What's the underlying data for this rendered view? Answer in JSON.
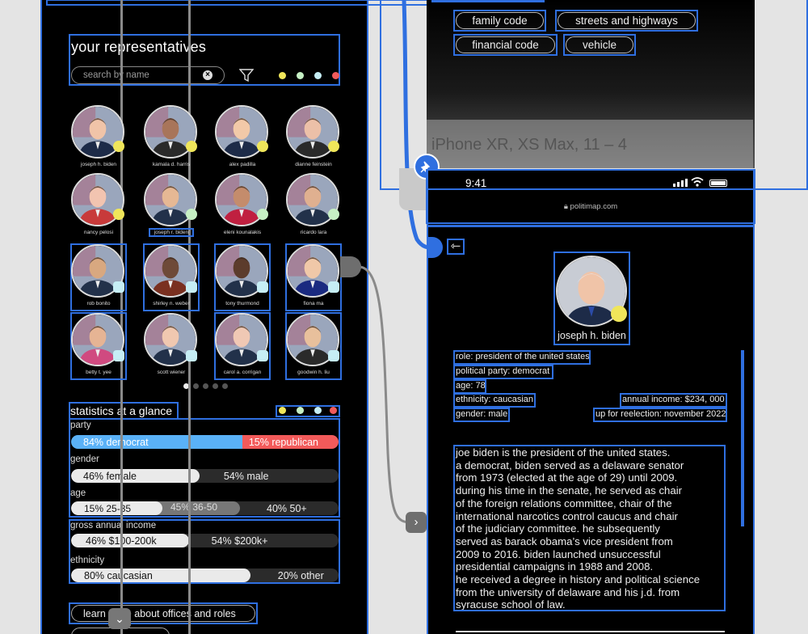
{
  "left_panel": {
    "title": "your representatives",
    "search_placeholder": "search by name",
    "filter_dot_colors": [
      "#f0e65a",
      "#c6f0c4",
      "#c6eef5",
      "#f25a5a"
    ],
    "reps": [
      {
        "name": "joseph h. biden",
        "badge": "#f0e65a"
      },
      {
        "name": "kamala d. harris",
        "badge": "#f0e65a"
      },
      {
        "name": "alex padilla",
        "badge": "#f0e65a"
      },
      {
        "name": "dianne feinstein",
        "badge": "#f0e65a"
      },
      {
        "name": "nancy pelosi",
        "badge": "#f0e65a"
      },
      {
        "name": "joseph r. biden",
        "badge": "#c6f0c4"
      },
      {
        "name": "eleni kounalakis",
        "badge": "#c6f0c4"
      },
      {
        "name": "ricardo lara",
        "badge": "#c6f0c4"
      },
      {
        "name": "rob bonito",
        "badge": "#c6eef5"
      },
      {
        "name": "shirley n. weber",
        "badge": "#c6eef5"
      },
      {
        "name": "tony thurmond",
        "badge": "#c6eef5"
      },
      {
        "name": "fiona ma",
        "badge": "#c6eef5"
      },
      {
        "name": "betty t. yee",
        "badge": "#c6eef5"
      },
      {
        "name": "scott wiener",
        "badge": "#c6eef5"
      },
      {
        "name": "carol a. corrigan",
        "badge": "#c6eef5"
      },
      {
        "name": "goodwin h. liu",
        "badge": "#c6eef5"
      }
    ],
    "stats": {
      "title": "statistics at a glance",
      "party_label": "party",
      "party_dem": "84% democrat",
      "party_rep": "15% republican",
      "gender_label": "gender",
      "gender_female": "46% female",
      "gender_male": "54% male",
      "age_label": "age",
      "age_a": "15% 25-35",
      "age_b": "45% 36-50",
      "age_c": "40% 50+",
      "income_label": "gross annual income",
      "income_a": "46% $100-200k",
      "income_b": "54% $200k+",
      "ethnicity_label": "ethnicity",
      "eth_a": "80% caucasian",
      "eth_b": "20% other"
    },
    "learn_more": "learn more about offices and roles",
    "colors": {
      "democrat": "#5ab1f7",
      "republican": "#f25a5a"
    }
  },
  "top_right": {
    "tags": [
      "family code",
      "streets and highways",
      "financial code",
      "vehicle"
    ],
    "device_label": "iPhone XR, XS Max, 11 – 4"
  },
  "right_panel": {
    "time": "9:41",
    "url": "politimap.com",
    "name": "joseph h. biden",
    "role": "role: president of the united states",
    "party": "political party: democrat",
    "age": "age: 78",
    "ethnicity": "ethnicity: caucasian",
    "income": "annual income: $234, 000",
    "gender": "gender: male",
    "reelection": "up for reelection: november 2022",
    "bio": [
      "joe biden is the president of the united states.",
      "a democrat, biden served as a delaware senator",
      "from 1973 (elected at the age of 29) until 2009.",
      "during his time in the senate, he served as chair",
      "of the foreign relations committee, chair of the",
      "international narcotics control caucus and chair",
      "of the judiciary committee. he subsequently",
      "served as barack obama’s vice president from",
      "2009 to 2016. biden launched unsuccessful",
      "presidential campaigns in 1988 and 2008.",
      "he received a degree in history and political science",
      "from the university of delaware and his j.d. from",
      "syracuse school of law."
    ]
  }
}
